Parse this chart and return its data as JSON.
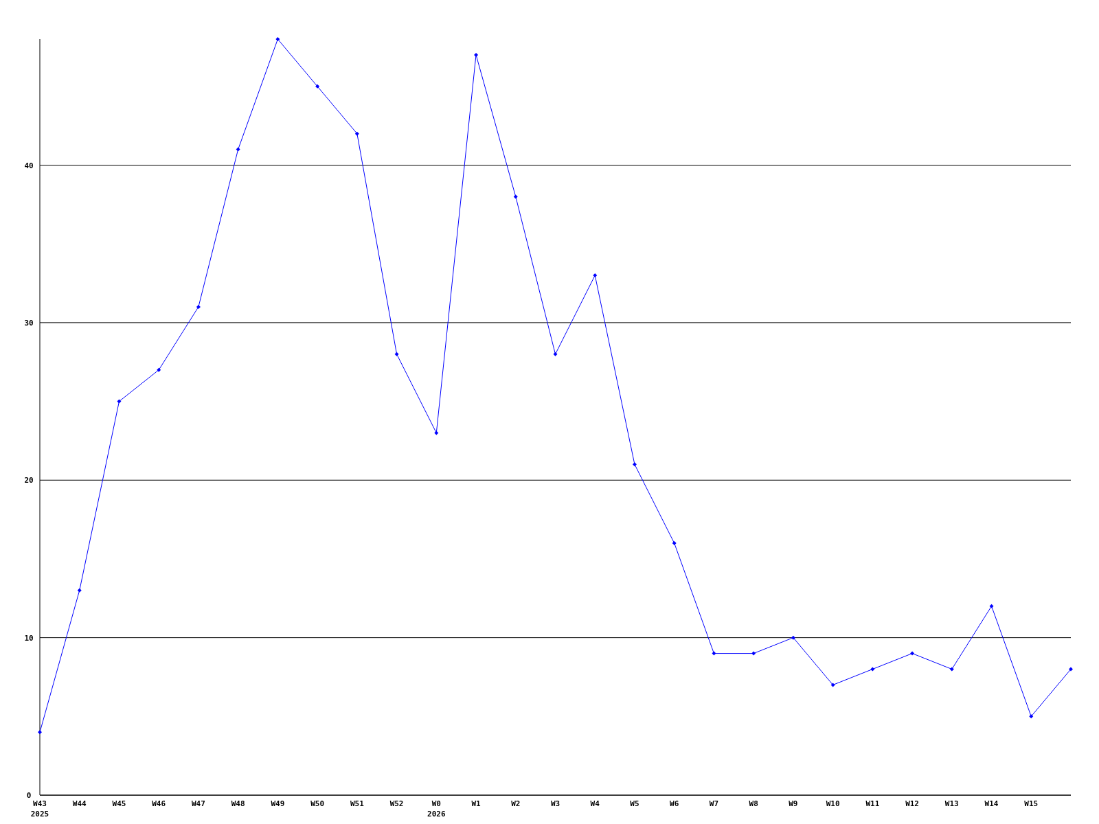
{
  "chart_data": {
    "type": "line",
    "categories": [
      "W43\n2025",
      "W44",
      "W45",
      "W46",
      "W47",
      "W48",
      "W49",
      "W50",
      "W51",
      "W52",
      "W0\n2026",
      "W1",
      "W2",
      "W3",
      "W4",
      "W5",
      "W6",
      "W7",
      "W8",
      "W9",
      "W10",
      "W11",
      "W12",
      "W13",
      "W14",
      "W15",
      null
    ],
    "series": [
      {
        "color": "#0000ff",
        "values": [
          4,
          13,
          25,
          27,
          31,
          41,
          48,
          45,
          42,
          28,
          23,
          47,
          38,
          28,
          33,
          21,
          16,
          9,
          9,
          10,
          7,
          8,
          9,
          8,
          12,
          5,
          8
        ]
      }
    ],
    "ylim": [
      0,
      48
    ],
    "yticks": [
      0,
      10,
      20,
      30,
      40
    ],
    "grid": "y",
    "marker": "diamond",
    "line_style": "solid"
  }
}
